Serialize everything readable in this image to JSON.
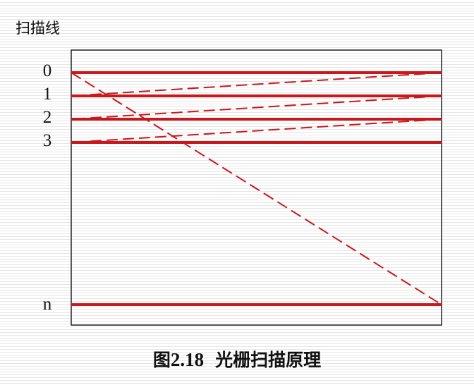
{
  "axis_title": "扫描线",
  "line_labels": [
    "0",
    "1",
    "2",
    "3",
    "n"
  ],
  "caption": {
    "prefix": "图",
    "number": "2.18",
    "text": "光栅扫描原理"
  },
  "colors": {
    "scan_line": "#c8181c",
    "frame": "#222222"
  }
}
